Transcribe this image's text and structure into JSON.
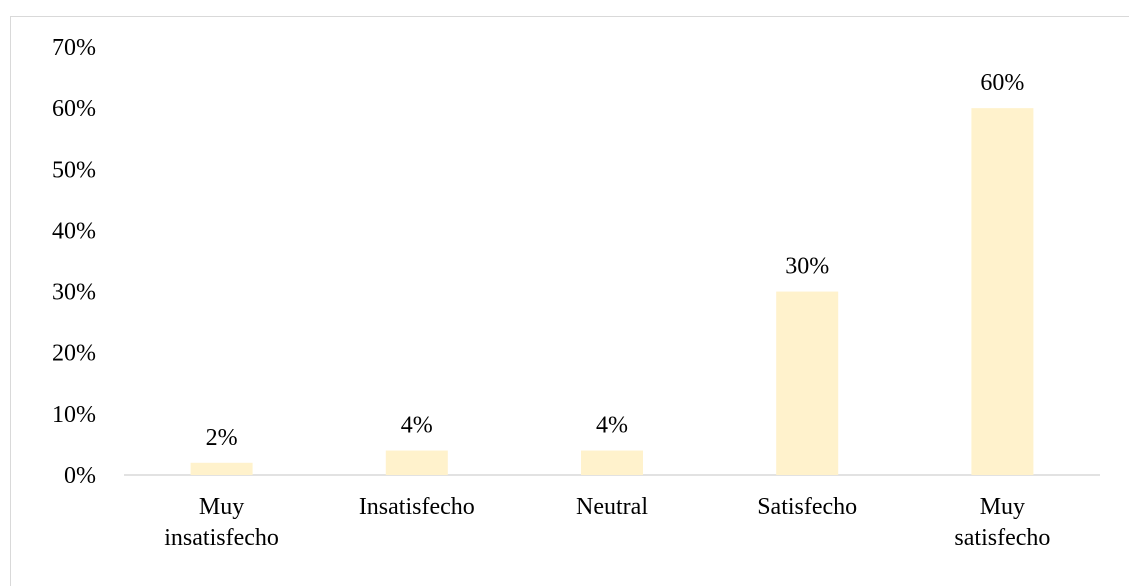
{
  "chart_data": {
    "type": "bar",
    "categories": [
      "Muy insatisfecho",
      "Insatisfecho",
      "Neutral",
      "Satisfecho",
      "Muy satisfecho"
    ],
    "category_lines": [
      [
        "Muy",
        "insatisfecho"
      ],
      [
        "Insatisfecho"
      ],
      [
        "Neutral"
      ],
      [
        "Satisfecho"
      ],
      [
        "Muy",
        "satisfecho"
      ]
    ],
    "values": [
      2,
      4,
      4,
      30,
      60
    ],
    "data_labels": [
      "2%",
      "4%",
      "4%",
      "30%",
      "60%"
    ],
    "y_ticks": [
      "0%",
      "10%",
      "20%",
      "30%",
      "40%",
      "50%",
      "60%",
      "70%"
    ],
    "ylim": [
      0,
      70
    ],
    "unit": "%",
    "grid": false,
    "bar_color": "#fff2cc",
    "axis_color": "#d9d9d9",
    "title": "",
    "xlabel": "",
    "ylabel": ""
  }
}
